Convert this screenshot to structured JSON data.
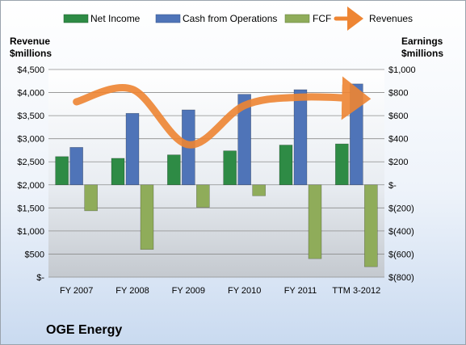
{
  "company_label": "OGE Energy",
  "chart_data": {
    "type": "bar",
    "categories": [
      "FY 2007",
      "FY 2008",
      "FY 2009",
      "FY 2010",
      "FY 2011",
      "TTM 3-2012"
    ],
    "left_axis": {
      "title_lines": [
        "Revenue",
        "$millions"
      ],
      "range": [
        0,
        4500
      ],
      "ticks": [
        {
          "value": 0,
          "label": "$-"
        },
        {
          "value": 500,
          "label": "$500"
        },
        {
          "value": 1000,
          "label": "$1,000"
        },
        {
          "value": 1500,
          "label": "$1,500"
        },
        {
          "value": 2000,
          "label": "$2,000"
        },
        {
          "value": 2500,
          "label": "$2,500"
        },
        {
          "value": 3000,
          "label": "$3,000"
        },
        {
          "value": 3500,
          "label": "$3,500"
        },
        {
          "value": 4000,
          "label": "$4,000"
        },
        {
          "value": 4500,
          "label": "$4,500"
        }
      ]
    },
    "right_axis": {
      "title_lines": [
        "Earnings",
        "$millions"
      ],
      "range": [
        -800,
        1000
      ],
      "ticks": [
        {
          "value": -800,
          "label": "$(800)"
        },
        {
          "value": -600,
          "label": "$(600)"
        },
        {
          "value": -400,
          "label": "$(400)"
        },
        {
          "value": -200,
          "label": "$(200)"
        },
        {
          "value": 0,
          "label": "$-"
        },
        {
          "value": 200,
          "label": "$200"
        },
        {
          "value": 400,
          "label": "$400"
        },
        {
          "value": 600,
          "label": "$600"
        },
        {
          "value": 800,
          "label": "$800"
        },
        {
          "value": 1000,
          "label": "$1,000"
        }
      ]
    },
    "series": [
      {
        "name": "Net Income",
        "type": "bar",
        "axis": "right",
        "color": "#2e8b45",
        "values": [
          245,
          230,
          260,
          295,
          345,
          355
        ]
      },
      {
        "name": "Cash from Operations",
        "type": "bar",
        "axis": "right",
        "color": "#4f74b8",
        "values": [
          325,
          620,
          650,
          785,
          825,
          875
        ]
      },
      {
        "name": "FCF",
        "type": "bar",
        "axis": "right",
        "color": "#8fac5a",
        "values": [
          -225,
          -560,
          -195,
          -95,
          -640,
          -710
        ]
      },
      {
        "name": "Revenues",
        "type": "line",
        "axis": "left",
        "color": "#ee8533",
        "values": [
          3800,
          4070,
          2870,
          3720,
          3900,
          3870
        ]
      }
    ],
    "grid": "horizontal",
    "legend_position": "top"
  }
}
